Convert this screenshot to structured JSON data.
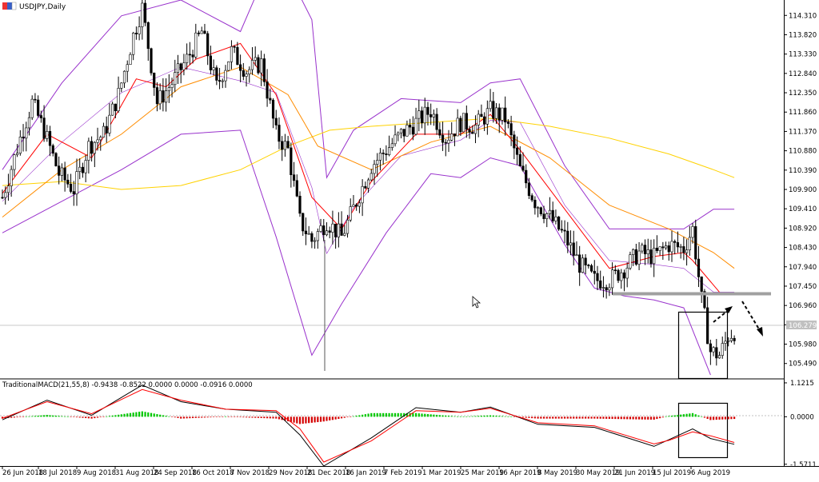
{
  "header": {
    "symbol_label": "USDJPY,Daily",
    "flag_icon": "instrument-flag-icon"
  },
  "indicator_header": "TraditionalMACD(21,55,8) -0.9438 -0.8522 0.0000 0.0000 -0.0916 0.0000",
  "price_marker": "106.279",
  "colors": {
    "background": "#ffffff",
    "candle": "#000000",
    "bollinger": "#9932cc",
    "ema_fast": "#ff0000",
    "ema_mid": "#ff8c00",
    "sma_slow": "#ffd200",
    "macd_line": "#000000",
    "signal_line": "#ff0000",
    "hist_pos": "#00c800",
    "hist_neg": "#d40000",
    "level_line": "#a0a0a0",
    "annotation": "#000000"
  },
  "chart_data": [
    {
      "type": "candlestick",
      "title": "USDJPY,Daily",
      "x_tick_labels": [
        "26 Jun 2018",
        "18 Jul 2018",
        "9 Aug 2018",
        "31 Aug 2018",
        "24 Sep 2018",
        "16 Oct 2018",
        "7 Nov 2018",
        "29 Nov 2018",
        "21 Dec 2018",
        "16 Jan 2019",
        "7 Feb 2019",
        "1 Mar 2019",
        "25 Mar 2019",
        "16 Apr 2019",
        "8 May 2019",
        "30 May 2019",
        "21 Jun 2019",
        "15 Jul 2019",
        "6 Aug 2019"
      ],
      "y_tick_labels": [
        "114.310",
        "113.820",
        "113.330",
        "112.840",
        "112.350",
        "111.860",
        "111.370",
        "110.880",
        "110.390",
        "109.900",
        "109.410",
        "108.920",
        "108.430",
        "107.940",
        "107.450",
        "106.960",
        "106.470",
        "105.980",
        "105.490"
      ],
      "ylim": [
        105.1,
        114.7
      ],
      "current_price": 106.279,
      "support_level": 107.2,
      "price_path": [
        [
          0,
          109.7
        ],
        [
          6,
          111.2
        ],
        [
          10,
          112.1
        ],
        [
          14,
          111.4
        ],
        [
          19,
          110.3
        ],
        [
          24,
          109.9
        ],
        [
          29,
          111.0
        ],
        [
          34,
          111.3
        ],
        [
          39,
          112.3
        ],
        [
          44,
          113.8
        ],
        [
          47,
          114.5
        ],
        [
          52,
          112.1
        ],
        [
          57,
          112.6
        ],
        [
          62,
          113.2
        ],
        [
          67,
          113.9
        ],
        [
          72,
          112.5
        ],
        [
          77,
          113.4
        ],
        [
          82,
          112.9
        ],
        [
          87,
          113.1
        ],
        [
          92,
          111.3
        ],
        [
          96,
          110.9
        ],
        [
          100,
          109.1
        ],
        [
          104,
          108.6
        ],
        [
          109,
          109.1
        ],
        [
          114,
          108.7
        ],
        [
          119,
          109.6
        ],
        [
          124,
          110.5
        ],
        [
          129,
          110.9
        ],
        [
          134,
          111.3
        ],
        [
          139,
          111.6
        ],
        [
          144,
          111.9
        ],
        [
          149,
          111.2
        ],
        [
          154,
          111.6
        ],
        [
          159,
          111.5
        ],
        [
          164,
          111.9
        ],
        [
          169,
          111.7
        ],
        [
          174,
          110.4
        ],
        [
          179,
          109.6
        ],
        [
          184,
          109.2
        ],
        [
          189,
          108.7
        ],
        [
          194,
          108.0
        ],
        [
          199,
          107.6
        ],
        [
          204,
          107.6
        ],
        [
          209,
          107.9
        ],
        [
          214,
          108.3
        ],
        [
          219,
          108.2
        ],
        [
          224,
          108.5
        ],
        [
          229,
          108.4
        ],
        [
          232,
          108.9
        ],
        [
          235,
          107.1
        ],
        [
          238,
          105.8
        ],
        [
          241,
          105.7
        ],
        [
          244,
          106.2
        ],
        [
          246,
          106.3
        ]
      ],
      "bollinger_upper": [
        [
          0,
          110.4
        ],
        [
          20,
          112.6
        ],
        [
          40,
          114.3
        ],
        [
          60,
          114.7
        ],
        [
          80,
          113.9
        ],
        [
          92,
          116.0
        ],
        [
          104,
          114.2
        ],
        [
          109,
          110.2
        ],
        [
          118,
          111.4
        ],
        [
          134,
          112.2
        ],
        [
          154,
          112.1
        ],
        [
          164,
          112.6
        ],
        [
          174,
          112.7
        ],
        [
          189,
          110.5
        ],
        [
          204,
          108.9
        ],
        [
          219,
          108.9
        ],
        [
          229,
          108.9
        ],
        [
          239,
          109.4
        ],
        [
          246,
          109.4
        ]
      ],
      "bollinger_lower": [
        [
          0,
          108.8
        ],
        [
          20,
          109.6
        ],
        [
          40,
          110.4
        ],
        [
          60,
          111.3
        ],
        [
          80,
          111.4
        ],
        [
          92,
          108.7
        ],
        [
          104,
          105.7
        ],
        [
          114,
          107.0
        ],
        [
          129,
          108.8
        ],
        [
          144,
          110.3
        ],
        [
          154,
          110.2
        ],
        [
          164,
          110.7
        ],
        [
          174,
          110.5
        ],
        [
          189,
          108.5
        ],
        [
          199,
          107.4
        ],
        [
          209,
          107.2
        ],
        [
          219,
          107.1
        ],
        [
          229,
          106.9
        ],
        [
          238,
          105.2
        ]
      ],
      "ema_fast": [
        [
          0,
          109.8
        ],
        [
          15,
          111.3
        ],
        [
          30,
          110.7
        ],
        [
          45,
          112.7
        ],
        [
          55,
          112.5
        ],
        [
          65,
          113.2
        ],
        [
          80,
          113.6
        ],
        [
          92,
          112.3
        ],
        [
          104,
          109.7
        ],
        [
          114,
          108.9
        ],
        [
          124,
          110.1
        ],
        [
          139,
          111.3
        ],
        [
          154,
          111.3
        ],
        [
          164,
          111.8
        ],
        [
          174,
          110.9
        ],
        [
          189,
          109.4
        ],
        [
          204,
          107.9
        ],
        [
          219,
          108.2
        ],
        [
          229,
          108.3
        ],
        [
          232,
          108.1
        ],
        [
          241,
          107.3
        ]
      ],
      "ema_mid": [
        [
          0,
          109.2
        ],
        [
          20,
          110.4
        ],
        [
          40,
          111.3
        ],
        [
          60,
          112.5
        ],
        [
          80,
          113.0
        ],
        [
          96,
          112.3
        ],
        [
          106,
          111.0
        ],
        [
          124,
          110.4
        ],
        [
          144,
          111.1
        ],
        [
          164,
          111.5
        ],
        [
          184,
          110.7
        ],
        [
          204,
          109.5
        ],
        [
          224,
          108.9
        ],
        [
          239,
          108.3
        ],
        [
          246,
          107.9
        ]
      ],
      "sma_slow": [
        [
          0,
          110.0
        ],
        [
          20,
          110.1
        ],
        [
          40,
          109.9
        ],
        [
          60,
          110.0
        ],
        [
          80,
          110.4
        ],
        [
          96,
          111.0
        ],
        [
          110,
          111.4
        ],
        [
          124,
          111.5
        ],
        [
          144,
          111.6
        ],
        [
          164,
          111.7
        ],
        [
          184,
          111.5
        ],
        [
          204,
          111.2
        ],
        [
          224,
          110.8
        ],
        [
          239,
          110.4
        ],
        [
          246,
          110.2
        ]
      ]
    },
    {
      "type": "macd",
      "title": "TraditionalMACD(21,55,8)",
      "y_tick_labels": [
        "1.1215",
        "0.0000",
        "-1.5711"
      ],
      "ylim": [
        -1.63,
        1.2
      ],
      "macd_path": [
        [
          0,
          -0.1
        ],
        [
          15,
          0.55
        ],
        [
          30,
          0.05
        ],
        [
          47,
          1.05
        ],
        [
          60,
          0.5
        ],
        [
          75,
          0.25
        ],
        [
          92,
          0.15
        ],
        [
          100,
          -0.6
        ],
        [
          108,
          -1.63
        ],
        [
          124,
          -0.7
        ],
        [
          139,
          0.3
        ],
        [
          154,
          0.15
        ],
        [
          164,
          0.32
        ],
        [
          180,
          -0.25
        ],
        [
          199,
          -0.35
        ],
        [
          219,
          -0.98
        ],
        [
          224,
          -0.76
        ],
        [
          232,
          -0.4
        ],
        [
          238,
          -0.72
        ],
        [
          246,
          -0.91
        ]
      ],
      "signal_path": [
        [
          0,
          -0.05
        ],
        [
          15,
          0.5
        ],
        [
          30,
          0.1
        ],
        [
          47,
          0.9
        ],
        [
          60,
          0.55
        ],
        [
          75,
          0.25
        ],
        [
          92,
          0.2
        ],
        [
          100,
          -0.4
        ],
        [
          108,
          -1.5
        ],
        [
          124,
          -0.8
        ],
        [
          139,
          0.2
        ],
        [
          154,
          0.15
        ],
        [
          164,
          0.28
        ],
        [
          180,
          -0.2
        ],
        [
          199,
          -0.3
        ],
        [
          219,
          -0.9
        ],
        [
          224,
          -0.78
        ],
        [
          232,
          -0.5
        ],
        [
          238,
          -0.63
        ],
        [
          246,
          -0.85
        ]
      ]
    }
  ]
}
